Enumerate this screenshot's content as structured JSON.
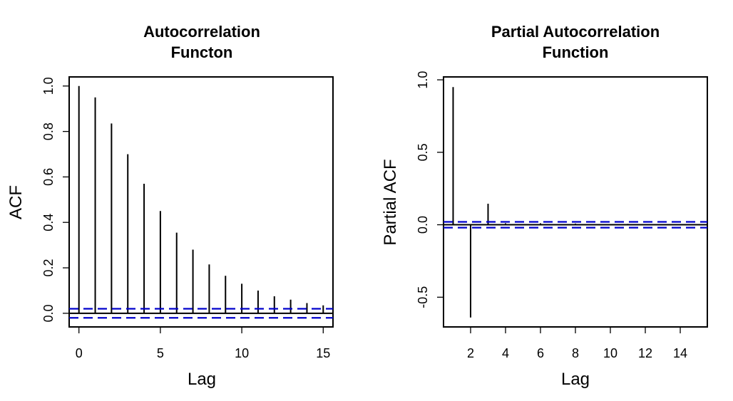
{
  "chart_data": [
    {
      "type": "bar",
      "subtype": "acf-spikes",
      "title_lines": [
        "Autocorrelation",
        "Functon"
      ],
      "xlabel": "Lag",
      "ylabel": "ACF",
      "xlim": [
        -0.6,
        15.6
      ],
      "ylim": [
        -0.06,
        1.04
      ],
      "xticks": [
        0,
        5,
        10,
        15
      ],
      "xtick_labels": [
        "0",
        "5",
        "10",
        "15"
      ],
      "yticks": [
        0.0,
        0.2,
        0.4,
        0.6,
        0.8,
        1.0
      ],
      "ytick_labels": [
        "0.0",
        "0.2",
        "0.4",
        "0.6",
        "0.8",
        "1.0"
      ],
      "lags": [
        0,
        1,
        2,
        3,
        4,
        5,
        6,
        7,
        8,
        9,
        10,
        11,
        12,
        13,
        14,
        15
      ],
      "values": [
        1.0,
        0.95,
        0.835,
        0.7,
        0.57,
        0.45,
        0.355,
        0.28,
        0.215,
        0.165,
        0.13,
        0.1,
        0.075,
        0.06,
        0.045,
        0.035
      ],
      "confidence_band": 0.02,
      "band_color": "#0000cc"
    },
    {
      "type": "bar",
      "subtype": "pacf-spikes",
      "title_lines": [
        "Partial Autocorrelation",
        "Function"
      ],
      "xlabel": "Lag",
      "ylabel": "Partial ACF",
      "xlim": [
        0.45,
        15.55
      ],
      "ylim": [
        -0.705,
        1.02
      ],
      "xticks": [
        2,
        4,
        6,
        8,
        10,
        12,
        14
      ],
      "xtick_labels": [
        "2",
        "4",
        "6",
        "8",
        "10",
        "12",
        "14"
      ],
      "yticks": [
        -0.5,
        0.0,
        0.5,
        1.0
      ],
      "ytick_labels": [
        "-0.5",
        "0.0",
        "0.5",
        "1.0"
      ],
      "lags": [
        1,
        2,
        3,
        4,
        5,
        6,
        7,
        8,
        9,
        10,
        11,
        12,
        13,
        14,
        15
      ],
      "values": [
        0.95,
        -0.64,
        0.145,
        0.01,
        0.005,
        0.01,
        0.005,
        0.008,
        0.005,
        0.005,
        0.006,
        0.005,
        0.005,
        0.005,
        0.005
      ],
      "confidence_band": 0.02,
      "band_color": "#0000cc"
    }
  ]
}
